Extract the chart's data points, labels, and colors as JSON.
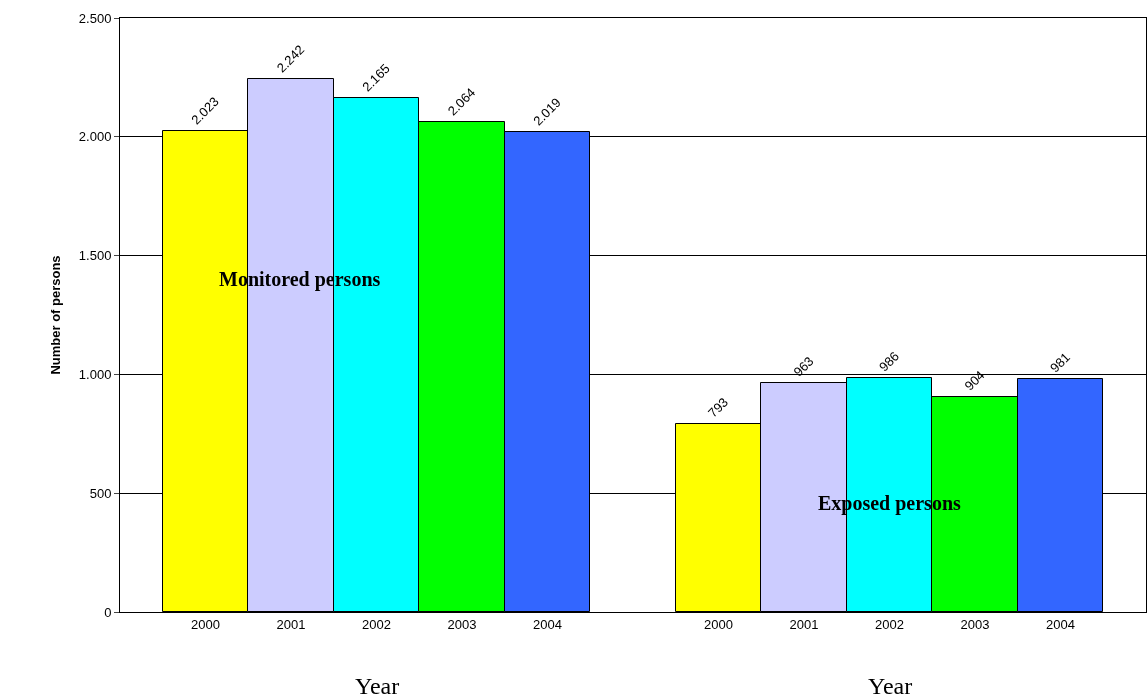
{
  "chart_data": {
    "type": "bar",
    "ylabel": "Number of persons",
    "xlabel": "Year",
    "categories": [
      "2000",
      "2001",
      "2002",
      "2003",
      "2004",
      null,
      "2000",
      "2001",
      "2002",
      "2003",
      "2004"
    ],
    "values": [
      2023,
      2242,
      2165,
      2064,
      2019,
      null,
      793,
      963,
      986,
      904,
      981
    ],
    "value_labels": [
      "2.023",
      "2.242",
      "2.165",
      "2.064",
      "2.019",
      null,
      "793",
      "963",
      "986",
      "904",
      "981"
    ],
    "colors": [
      "#ffff00",
      "#ccccff",
      "#00ffff",
      "#00ff00",
      "#3366ff",
      null,
      "#ffff00",
      "#ccccff",
      "#00ffff",
      "#00ff00",
      "#3366ff"
    ],
    "annotations": [
      "Monitored persons",
      "Exposed persons"
    ],
    "ylim": [
      0,
      2500
    ],
    "yticks": [
      0,
      500,
      {
        "value": 1000,
        "label": "1.000"
      },
      {
        "value": 1500,
        "label": "1.500"
      },
      {
        "value": 2000,
        "label": "2.000"
      },
      {
        "value": 2500,
        "label": "2.500"
      }
    ],
    "grid": "y"
  }
}
